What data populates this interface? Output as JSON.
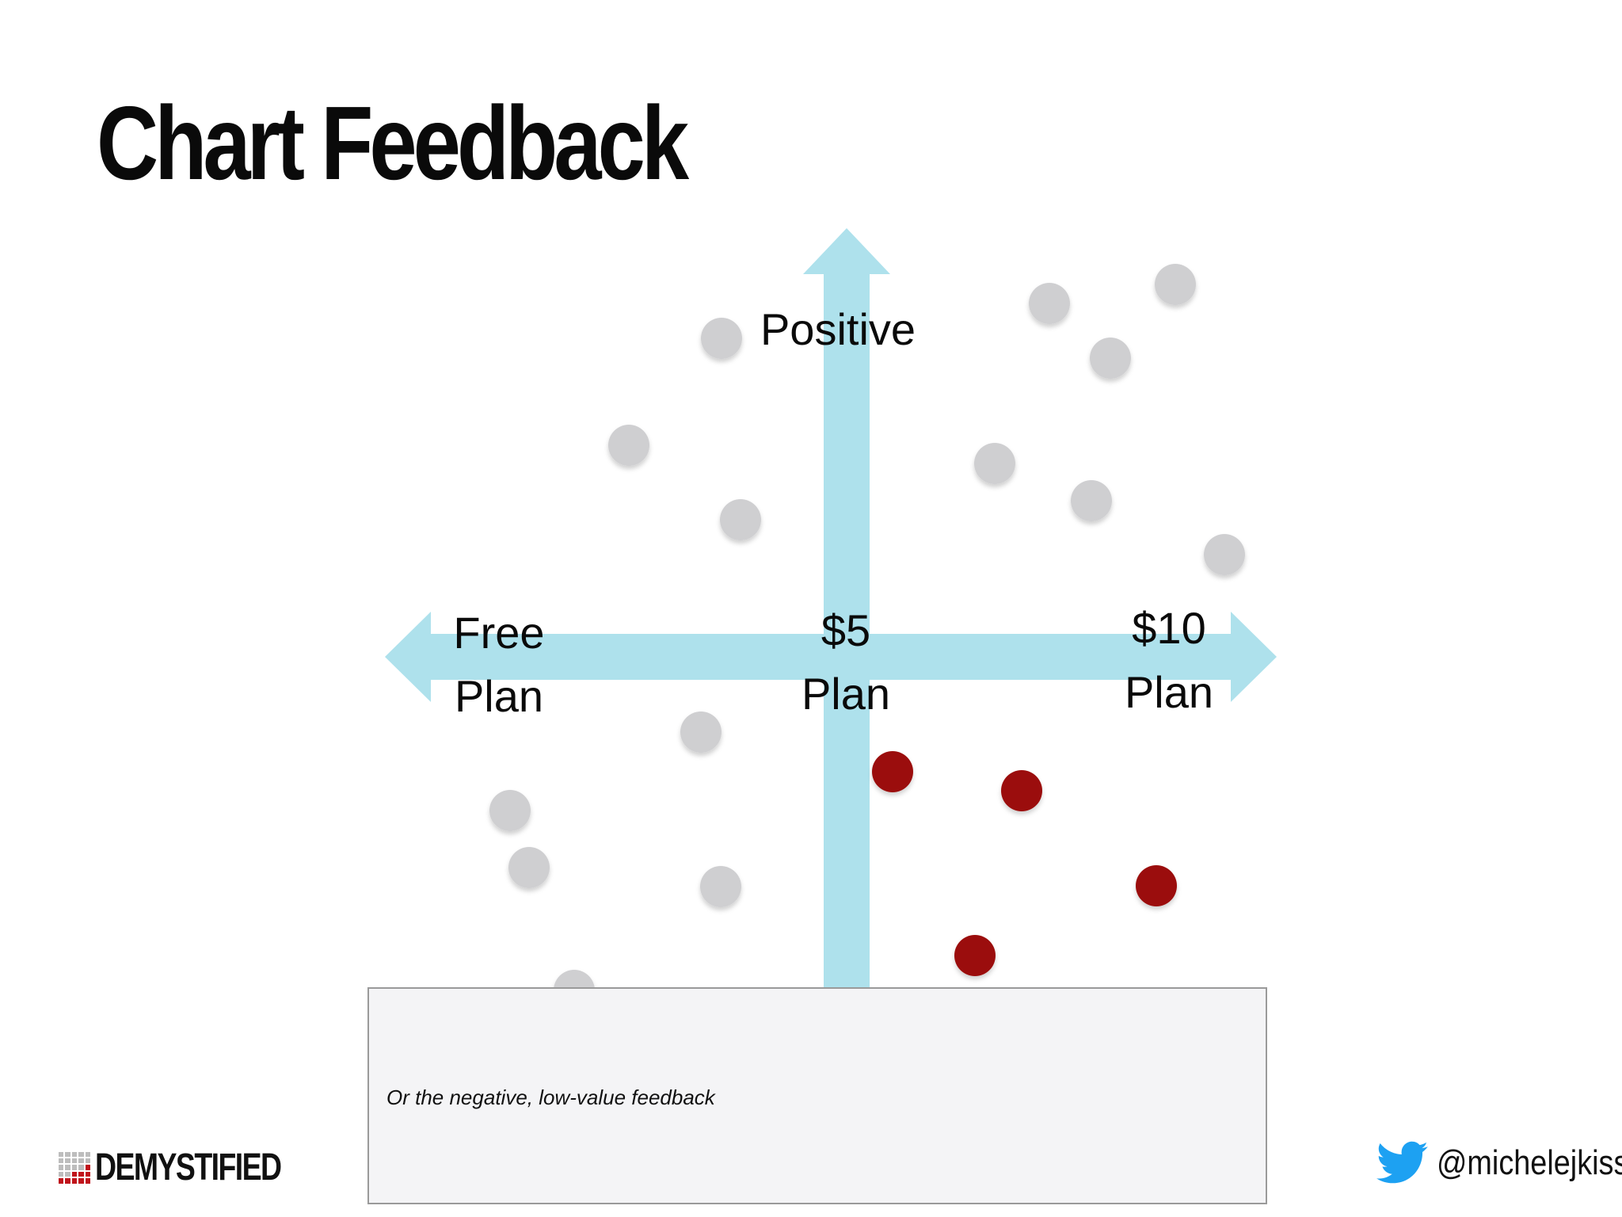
{
  "title": "Chart Feedback",
  "axes": {
    "y_top_label": "Positive",
    "x_labels": [
      {
        "line1": "Free",
        "line2": "Plan"
      },
      {
        "line1": "$5",
        "line2": "Plan"
      },
      {
        "line1": "$10",
        "line2": "Plan"
      }
    ],
    "arrow_color": "#aee1ec"
  },
  "points": {
    "neutral_color": "#cfcfd1",
    "highlight_color": "#9b1109"
  },
  "notes": {
    "text": "Or the negative, low-value feedback"
  },
  "footer": {
    "brand": "DEMYSTIFIED",
    "handle": "@michelejkiss",
    "twitter_color": "#1da1f2"
  }
}
